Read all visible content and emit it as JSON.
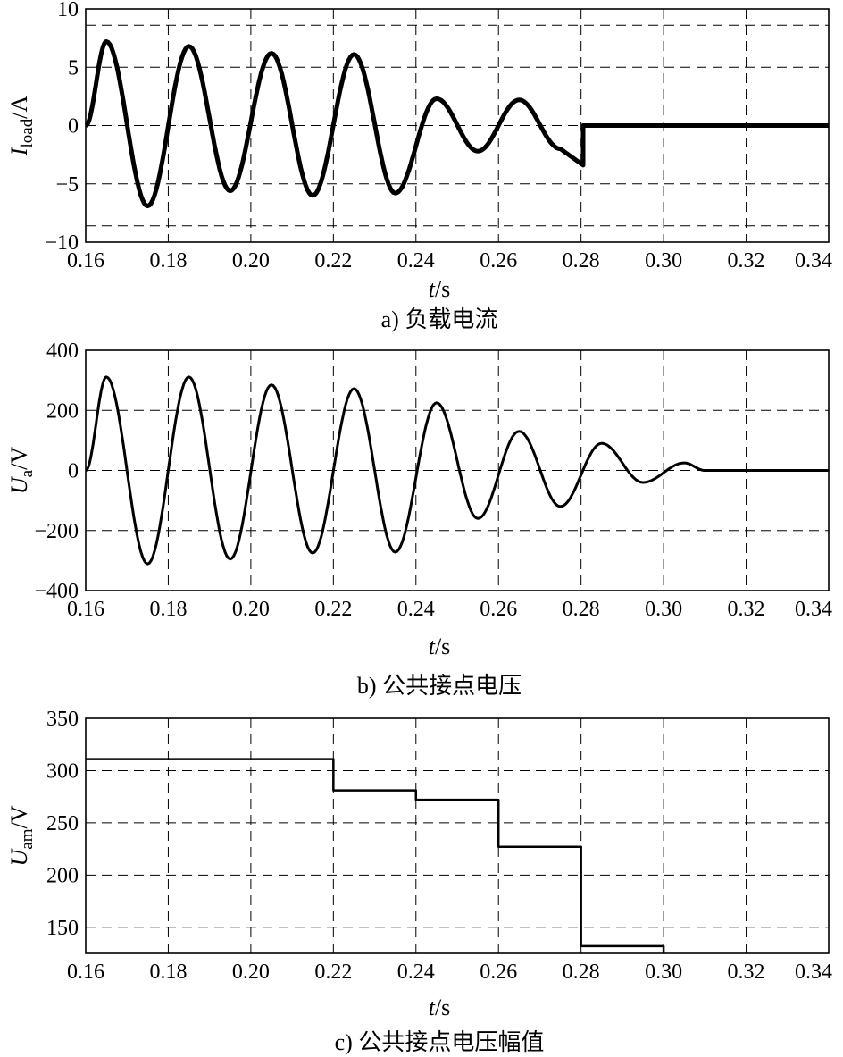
{
  "chart_data": [
    {
      "type": "line",
      "title": "",
      "caption": "a) 负载电流",
      "ylabel_main": "I",
      "ylabel_sub": "load",
      "ylabel_unit": "/A",
      "xlabel_main": "t",
      "xlabel_unit": "/s",
      "xlim": [
        0.16,
        0.34
      ],
      "ylim": [
        -10,
        10
      ],
      "xticks": [
        0.16,
        0.18,
        0.2,
        0.22,
        0.24,
        0.26,
        0.28,
        0.3,
        0.32,
        0.34
      ],
      "xtick_labels": [
        "0.16",
        "0.18",
        "0.20",
        "0.22",
        "0.24",
        "0.26",
        "0.28",
        "0.30",
        "0.32",
        "0.34"
      ],
      "yticks": [
        10,
        5,
        0,
        -5,
        -10
      ],
      "ytick_labels": [
        "10",
        "5",
        "0",
        "−5",
        "−10"
      ],
      "grid": true,
      "frequency_hz": 50,
      "stroke_width": 5,
      "segments": [
        {
          "t_start": 0.16,
          "t_end": 0.24,
          "amplitude": 7.1
        },
        {
          "t_start": 0.24,
          "t_end": 0.28,
          "amplitude": 2.3
        },
        {
          "t_start": 0.28,
          "t_end": 0.34,
          "amplitude": 0
        }
      ],
      "extremes": [
        {
          "t": 0.165,
          "y": 7.2
        },
        {
          "t": 0.175,
          "y": -6.9
        },
        {
          "t": 0.185,
          "y": 6.8
        },
        {
          "t": 0.195,
          "y": -5.6
        },
        {
          "t": 0.205,
          "y": 6.2
        },
        {
          "t": 0.215,
          "y": -6.0
        },
        {
          "t": 0.225,
          "y": 6.1
        },
        {
          "t": 0.235,
          "y": -5.8
        },
        {
          "t": 0.245,
          "y": 2.3
        },
        {
          "t": 0.255,
          "y": -2.2
        },
        {
          "t": 0.265,
          "y": 2.2
        },
        {
          "t": 0.275,
          "y": -2.0
        }
      ]
    },
    {
      "type": "line",
      "title": "",
      "caption": "b) 公共接点电压",
      "ylabel_main": "U",
      "ylabel_sub": "a",
      "ylabel_unit": "/V",
      "xlabel_main": "t",
      "xlabel_unit": "/s",
      "xlim": [
        0.16,
        0.34
      ],
      "ylim": [
        -400,
        400
      ],
      "xticks": [
        0.16,
        0.18,
        0.2,
        0.22,
        0.24,
        0.26,
        0.28,
        0.3,
        0.32,
        0.34
      ],
      "xtick_labels": [
        "0.16",
        "0.18",
        "0.20",
        "0.22",
        "0.24",
        "0.26",
        "0.28",
        "0.30",
        "0.32",
        "0.34"
      ],
      "yticks": [
        400,
        200,
        0,
        -200,
        -400
      ],
      "ytick_labels": [
        "400",
        "200",
        "0",
        "−200",
        "−400"
      ],
      "grid": true,
      "frequency_hz": 50,
      "stroke_width": 3,
      "extremes": [
        {
          "t": 0.165,
          "y": 311
        },
        {
          "t": 0.175,
          "y": -311
        },
        {
          "t": 0.185,
          "y": 311
        },
        {
          "t": 0.195,
          "y": -295
        },
        {
          "t": 0.205,
          "y": 285
        },
        {
          "t": 0.215,
          "y": -275
        },
        {
          "t": 0.225,
          "y": 272
        },
        {
          "t": 0.235,
          "y": -272
        },
        {
          "t": 0.245,
          "y": 225
        },
        {
          "t": 0.255,
          "y": -160
        },
        {
          "t": 0.265,
          "y": 130
        },
        {
          "t": 0.275,
          "y": -120
        },
        {
          "t": 0.285,
          "y": 90
        },
        {
          "t": 0.295,
          "y": -40
        },
        {
          "t": 0.305,
          "y": 25
        },
        {
          "t": 0.31,
          "y": 0
        }
      ]
    },
    {
      "type": "line",
      "title": "",
      "caption": "c) 公共接点电压幅值",
      "ylabel_main": "U",
      "ylabel_sub": "am",
      "ylabel_unit": "/V",
      "xlabel_main": "t",
      "xlabel_unit": "/s",
      "xlim": [
        0.16,
        0.34
      ],
      "ylim": [
        125,
        350
      ],
      "xticks": [
        0.16,
        0.18,
        0.2,
        0.22,
        0.24,
        0.26,
        0.28,
        0.3,
        0.32,
        0.34
      ],
      "xtick_labels": [
        "0.16",
        "0.18",
        "0.20",
        "0.22",
        "0.24",
        "0.26",
        "0.28",
        "0.30",
        "0.32",
        "0.34"
      ],
      "yticks": [
        350,
        300,
        250,
        200,
        150
      ],
      "ytick_labels": [
        "350",
        "300",
        "250",
        "200",
        "150"
      ],
      "grid": true,
      "stroke_width": 2.5,
      "steps": [
        {
          "t_start": 0.16,
          "t_end": 0.22,
          "y": 311
        },
        {
          "t_start": 0.22,
          "t_end": 0.24,
          "y": 281
        },
        {
          "t_start": 0.24,
          "t_end": 0.26,
          "y": 272
        },
        {
          "t_start": 0.26,
          "t_end": 0.28,
          "y": 227
        },
        {
          "t_start": 0.28,
          "t_end": 0.3,
          "y": 132
        }
      ]
    }
  ]
}
